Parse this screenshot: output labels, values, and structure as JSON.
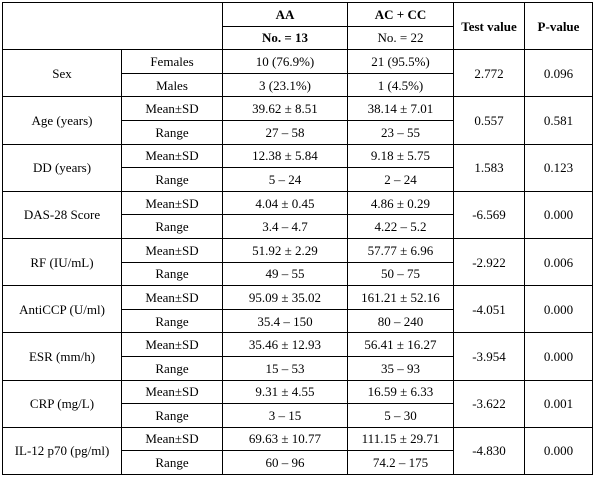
{
  "header": {
    "group1_title": "AA",
    "group1_n": "No. = 13",
    "group2_title": "AC + CC",
    "group2_n": "No. = 22",
    "test_value": "Test value",
    "p_value": "P-value"
  },
  "rows": [
    {
      "label": "Sex",
      "subrows": [
        {
          "stat": "Females",
          "aa": "10 (76.9%)",
          "ac": "21 (95.5%)"
        },
        {
          "stat": "Males",
          "aa": "3 (23.1%)",
          "ac": "1 (4.5%)"
        }
      ],
      "test": "2.772",
      "p": "0.096"
    },
    {
      "label": "Age (years)",
      "subrows": [
        {
          "stat": "Mean±SD",
          "aa": "39.62 ± 8.51",
          "ac": "38.14 ± 7.01"
        },
        {
          "stat": "Range",
          "aa": "27 – 58",
          "ac": "23 – 55"
        }
      ],
      "test": "0.557",
      "p": "0.581"
    },
    {
      "label": "DD (years)",
      "subrows": [
        {
          "stat": "Mean±SD",
          "aa": "12.38 ± 5.84",
          "ac": "9.18 ± 5.75"
        },
        {
          "stat": "Range",
          "aa": "5 – 24",
          "ac": "2 – 24"
        }
      ],
      "test": "1.583",
      "p": "0.123"
    },
    {
      "label": "DAS-28 Score",
      "subrows": [
        {
          "stat": "Mean±SD",
          "aa": "4.04 ± 0.45",
          "ac": "4.86 ± 0.29"
        },
        {
          "stat": "Range",
          "aa": "3.4 – 4.7",
          "ac": "4.22 – 5.2"
        }
      ],
      "test": "-6.569",
      "p": "0.000"
    },
    {
      "label": "RF (IU/mL)",
      "subrows": [
        {
          "stat": "Mean±SD",
          "aa": "51.92 ± 2.29",
          "ac": "57.77 ± 6.96"
        },
        {
          "stat": "Range",
          "aa": "49 – 55",
          "ac": "50 – 75"
        }
      ],
      "test": "-2.922",
      "p": "0.006"
    },
    {
      "label": "AntiCCP (U/ml)",
      "subrows": [
        {
          "stat": "Mean±SD",
          "aa": "95.09 ± 35.02",
          "ac": "161.21 ± 52.16"
        },
        {
          "stat": "Range",
          "aa": "35.4 – 150",
          "ac": "80 – 240"
        }
      ],
      "test": "-4.051",
      "p": "0.000"
    },
    {
      "label": "ESR (mm/h)",
      "subrows": [
        {
          "stat": "Mean±SD",
          "aa": "35.46 ± 12.93",
          "ac": "56.41 ± 16.27"
        },
        {
          "stat": "Range",
          "aa": "15 – 53",
          "ac": "35 – 93"
        }
      ],
      "test": "-3.954",
      "p": "0.000"
    },
    {
      "label": "CRP (mg/L)",
      "subrows": [
        {
          "stat": "Mean±SD",
          "aa": "9.31 ± 4.55",
          "ac": "16.59 ± 6.33"
        },
        {
          "stat": "Range",
          "aa": "3 – 15",
          "ac": "5 – 30"
        }
      ],
      "test": "-3.622",
      "p": "0.001"
    },
    {
      "label": "IL-12 p70 (pg/ml)",
      "subrows": [
        {
          "stat": "Mean±SD",
          "aa": "69.63 ± 10.77",
          "ac": "111.15 ± 29.71"
        },
        {
          "stat": "Range",
          "aa": "60 – 96",
          "ac": "74.2 – 175"
        }
      ],
      "test": "-4.830",
      "p": "0.000"
    }
  ]
}
